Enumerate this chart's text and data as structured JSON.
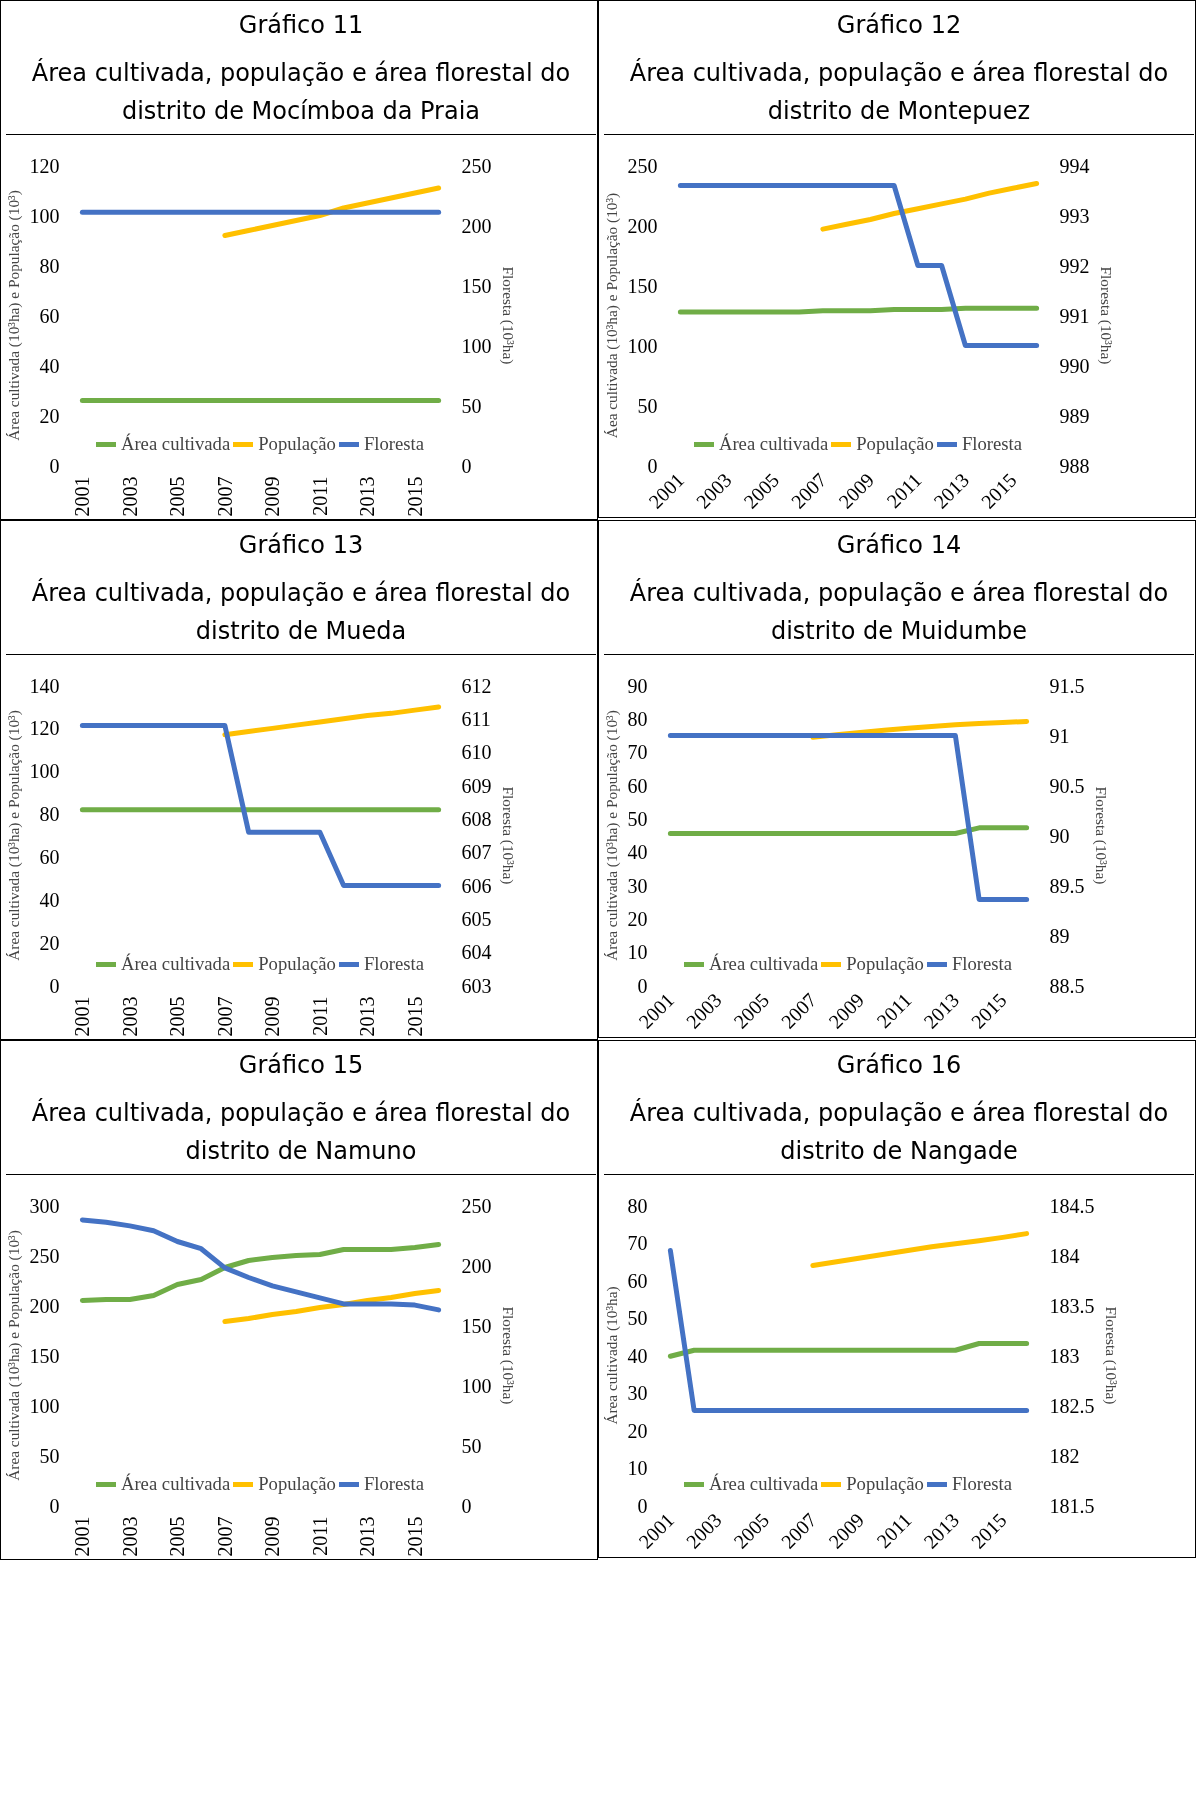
{
  "chart_data": [
    {
      "type": "line",
      "title": "Gráfico 11",
      "subtitle": "Área cultivada, população e área florestal do distrito de Mocímboa da Praia",
      "ylabel": "Área cultivada (10³ha) e População (10³)",
      "y2label": "Floresta (10³ha)",
      "categories": [
        "2001",
        null,
        "2003",
        null,
        "2005",
        null,
        "2007",
        null,
        "2009",
        null,
        "2011",
        null,
        "2013",
        null,
        "2015",
        null
      ],
      "ylim": [
        0,
        120
      ],
      "yticks": [
        0,
        20,
        40,
        60,
        80,
        100,
        120
      ],
      "y2lim": [
        0,
        250
      ],
      "y2ticks": [
        0,
        50,
        100,
        150,
        200,
        250
      ],
      "grid": false,
      "legend": "bottom",
      "series": [
        {
          "name": "Área cultivada",
          "color": "#70ad47",
          "values": [
            26,
            26,
            26,
            26,
            26,
            26,
            26,
            26,
            26,
            26,
            26,
            26,
            26,
            26,
            26,
            26
          ]
        },
        {
          "name": "População",
          "color": "#ffc000",
          "values": [
            null,
            null,
            null,
            null,
            null,
            null,
            92,
            94,
            96,
            98,
            100,
            103,
            105,
            107,
            109,
            111
          ]
        },
        {
          "name": "Floresta",
          "color": "#4472c4",
          "axis": "y2",
          "values": [
            211,
            211,
            211,
            211,
            211,
            211,
            211,
            211,
            211,
            211,
            211,
            211,
            211,
            211,
            211,
            211
          ]
        }
      ]
    },
    {
      "type": "line",
      "title": "Gráfico 12",
      "subtitle": "Área cultivada, população e área florestal do distrito de Montepuez",
      "ylabel": "Áea cultivada (10³ha) e População (10³)",
      "y2label": "Floresta (10³ha)",
      "categories": [
        "2001",
        null,
        "2003",
        null,
        "2005",
        null,
        "2007",
        null,
        "2009",
        null,
        "2011",
        null,
        "2013",
        null,
        "2015",
        null
      ],
      "ylim": [
        0,
        250
      ],
      "yticks": [
        0,
        50,
        100,
        150,
        200,
        250
      ],
      "y2lim": [
        988,
        994
      ],
      "y2ticks": [
        988,
        989,
        990,
        991,
        992,
        993,
        994
      ],
      "grid": false,
      "legend": "bottom",
      "series": [
        {
          "name": "Área cultivada",
          "color": "#70ad47",
          "values": [
            128,
            128,
            128,
            128,
            128,
            128,
            129,
            129,
            129,
            130,
            130,
            130,
            131,
            131,
            131,
            131
          ]
        },
        {
          "name": "População",
          "color": "#ffc000",
          "values": [
            null,
            null,
            null,
            null,
            null,
            null,
            197,
            201,
            205,
            210,
            214,
            218,
            222,
            227,
            231,
            235
          ]
        },
        {
          "name": "Floresta",
          "color": "#4472c4",
          "axis": "y2",
          "values": [
            993.6,
            993.6,
            993.6,
            993.6,
            993.6,
            993.6,
            993.6,
            993.6,
            993.6,
            993.6,
            992.0,
            992.0,
            990.4,
            990.4,
            990.4,
            990.4
          ]
        }
      ]
    },
    {
      "type": "line",
      "title": "Gráfico 13",
      "subtitle": "Área cultivada, população e área florestal do distrito de Mueda",
      "ylabel": "Área cultivada (10³ha) e População (10³)",
      "y2label": "Floresta (10³ha)",
      "categories": [
        "2001",
        null,
        "2003",
        null,
        "2005",
        null,
        "2007",
        null,
        "2009",
        null,
        "2011",
        null,
        "2013",
        null,
        "2015",
        null
      ],
      "ylim": [
        0,
        140
      ],
      "yticks": [
        0,
        20,
        40,
        60,
        80,
        100,
        120,
        140
      ],
      "y2lim": [
        603,
        612
      ],
      "y2ticks": [
        603,
        604,
        605,
        606,
        607,
        608,
        609,
        610,
        611,
        612
      ],
      "grid": false,
      "legend": "bottom",
      "series": [
        {
          "name": "Área cultivada",
          "color": "#70ad47",
          "values": [
            82,
            82,
            82,
            82,
            82,
            82,
            82,
            82,
            82,
            82,
            82,
            82,
            82,
            82,
            82,
            82
          ]
        },
        {
          "name": "População",
          "color": "#ffc000",
          "values": [
            null,
            null,
            null,
            null,
            null,
            null,
            117,
            118.5,
            120,
            121.5,
            123,
            124.5,
            126,
            127,
            128.5,
            130
          ]
        },
        {
          "name": "Floresta",
          "color": "#4472c4",
          "axis": "y2",
          "values": [
            610.8,
            610.8,
            610.8,
            610.8,
            610.8,
            610.8,
            610.8,
            607.6,
            607.6,
            607.6,
            607.6,
            606.0,
            606.0,
            606.0,
            606.0,
            606.0
          ]
        }
      ]
    },
    {
      "type": "line",
      "title": "Gráfico 14",
      "subtitle": "Área cultivada, população e área florestal do distrito de Muidumbe",
      "ylabel": "Área cultivada (10³ha) e População (10³)",
      "y2label": "Floresta (10³ha)",
      "categories": [
        "2001",
        null,
        "2003",
        null,
        "2005",
        null,
        "2007",
        null,
        "2009",
        null,
        "2011",
        null,
        "2013",
        null,
        "2015",
        null
      ],
      "ylim": [
        0,
        90
      ],
      "yticks": [
        0,
        10,
        20,
        30,
        40,
        50,
        60,
        70,
        80,
        90
      ],
      "y2lim": [
        88.5,
        91.5
      ],
      "y2ticks": [
        88.5,
        89,
        89.5,
        90,
        90.5,
        91,
        91.5
      ],
      "grid": false,
      "legend": "bottom",
      "series": [
        {
          "name": "Área cultivada",
          "color": "#70ad47",
          "values": [
            45.6,
            45.6,
            45.6,
            45.6,
            45.6,
            45.6,
            45.6,
            45.6,
            45.6,
            45.6,
            45.6,
            45.6,
            45.6,
            47.3,
            47.3,
            47.3
          ]
        },
        {
          "name": "População",
          "color": "#ffc000",
          "values": [
            null,
            null,
            null,
            null,
            null,
            null,
            74.5,
            75.2,
            75.9,
            76.6,
            77.2,
            77.7,
            78.2,
            78.6,
            78.9,
            79.2
          ]
        },
        {
          "name": "Floresta",
          "color": "#4472c4",
          "axis": "y2",
          "values": [
            91.0,
            91.0,
            91.0,
            91.0,
            91.0,
            91.0,
            91.0,
            91.0,
            91.0,
            91.0,
            91.0,
            91.0,
            91.0,
            89.36,
            89.36,
            89.36
          ]
        }
      ]
    },
    {
      "type": "line",
      "title": "Gráfico 15",
      "subtitle": "Área cultivada, população e área florestal do distrito de Namuno",
      "ylabel": "Área cultivada (10³ha) e População (10³)",
      "y2label": "Floresta (10³ha)",
      "categories": [
        "2001",
        null,
        "2003",
        null,
        "2005",
        null,
        "2007",
        null,
        "2009",
        null,
        "2011",
        null,
        "2013",
        null,
        "2015",
        null
      ],
      "ylim": [
        0,
        300
      ],
      "yticks": [
        0,
        50,
        100,
        150,
        200,
        250,
        300
      ],
      "y2lim": [
        0,
        250
      ],
      "y2ticks": [
        0,
        50,
        100,
        150,
        200,
        250
      ],
      "grid": false,
      "legend": "bottom",
      "series": [
        {
          "name": "Área cultivada",
          "color": "#70ad47",
          "values": [
            205,
            206,
            206,
            210,
            221,
            226,
            238,
            245,
            248,
            250,
            251,
            256,
            256,
            256,
            258,
            261
          ]
        },
        {
          "name": "População",
          "color": "#ffc000",
          "values": [
            null,
            null,
            null,
            null,
            null,
            null,
            184,
            187,
            191,
            194,
            198,
            201,
            205,
            208,
            212,
            215
          ]
        },
        {
          "name": "Floresta",
          "color": "#4472c4",
          "axis": "y2",
          "values": [
            238,
            236,
            233,
            229,
            220,
            214,
            198,
            190,
            183,
            178,
            173,
            168,
            168,
            168,
            167,
            163
          ]
        }
      ]
    },
    {
      "type": "line",
      "title": "Gráfico 16",
      "subtitle": "Área cultivada, população e área florestal do distrito de Nangade",
      "ylabel": "Área cultivada (10³ha)",
      "y2label": "Floresta (10³ha)",
      "categories": [
        "2001",
        null,
        "2003",
        null,
        "2005",
        null,
        "2007",
        null,
        "2009",
        null,
        "2011",
        null,
        "2013",
        null,
        "2015",
        null
      ],
      "ylim": [
        0,
        80
      ],
      "yticks": [
        0,
        10,
        20,
        30,
        40,
        50,
        60,
        70,
        80
      ],
      "y2lim": [
        181.5,
        184.5
      ],
      "y2ticks": [
        181.5,
        182,
        182.5,
        183,
        183.5,
        184,
        184.5
      ],
      "grid": false,
      "legend": "bottom",
      "series": [
        {
          "name": "Área cultivada",
          "color": "#70ad47",
          "values": [
            39.8,
            41.4,
            41.4,
            41.4,
            41.4,
            41.4,
            41.4,
            41.4,
            41.4,
            41.4,
            41.4,
            41.4,
            41.4,
            43.2,
            43.2,
            43.2
          ]
        },
        {
          "name": "População",
          "color": "#ffc000",
          "values": [
            null,
            null,
            null,
            null,
            null,
            null,
            64,
            65,
            66,
            67,
            68,
            69,
            69.8,
            70.6,
            71.5,
            72.5
          ]
        },
        {
          "name": "Floresta",
          "color": "#4472c4",
          "axis": "y2",
          "values": [
            184.05,
            182.45,
            182.45,
            182.45,
            182.45,
            182.45,
            182.45,
            182.45,
            182.45,
            182.45,
            182.45,
            182.45,
            182.45,
            182.45,
            182.45,
            182.45
          ]
        }
      ]
    }
  ]
}
